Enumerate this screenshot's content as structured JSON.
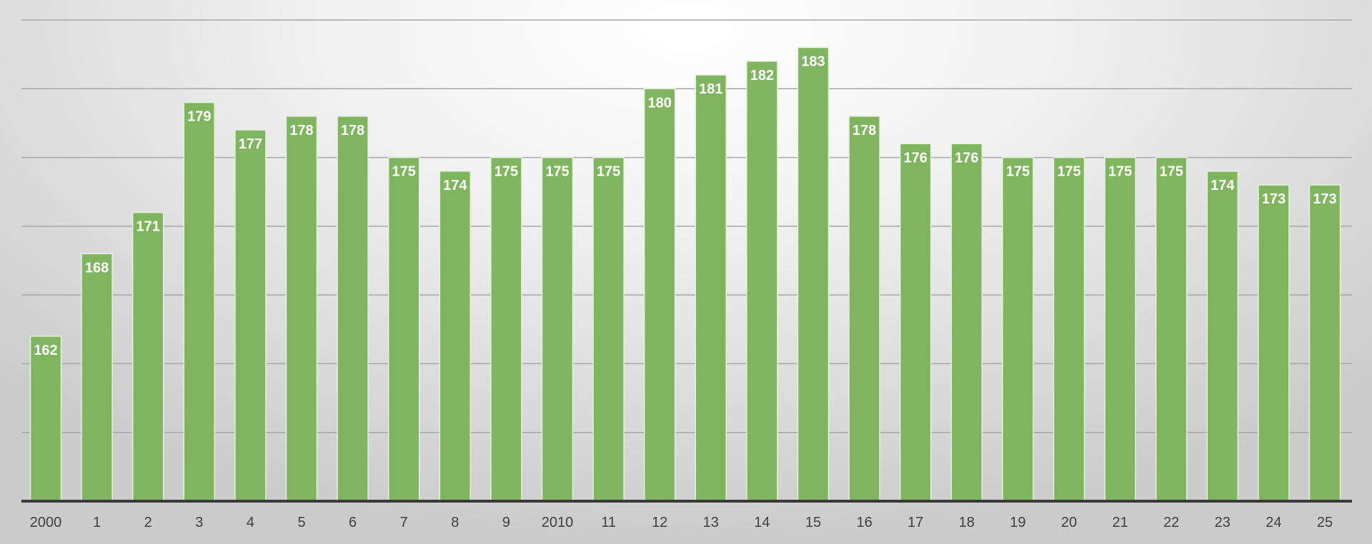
{
  "chart_data": {
    "type": "bar",
    "title": "",
    "xlabel": "",
    "ylabel": "",
    "categories": [
      "2000",
      "1",
      "2",
      "3",
      "4",
      "5",
      "6",
      "7",
      "8",
      "9",
      "2010",
      "11",
      "12",
      "13",
      "14",
      "15",
      "16",
      "17",
      "18",
      "19",
      "20",
      "21",
      "22",
      "23",
      "24",
      "25"
    ],
    "values": [
      162,
      168,
      171,
      179,
      177,
      178,
      178,
      175,
      174,
      175,
      175,
      175,
      180,
      181,
      182,
      183,
      178,
      176,
      176,
      175,
      175,
      175,
      175,
      174,
      173,
      173
    ],
    "ylim": [
      150,
      185
    ],
    "gridlines": [
      155,
      160,
      165,
      170,
      175,
      180,
      185
    ],
    "grid": true,
    "data_labels": true,
    "legend": "none",
    "colors": {
      "bar": "#7fb55f",
      "bar_edge": "#e6f0dc",
      "label": "#ffffff",
      "tick": "#404040",
      "grid": "#a6a6a6",
      "axis": "#3a3a3a"
    }
  }
}
